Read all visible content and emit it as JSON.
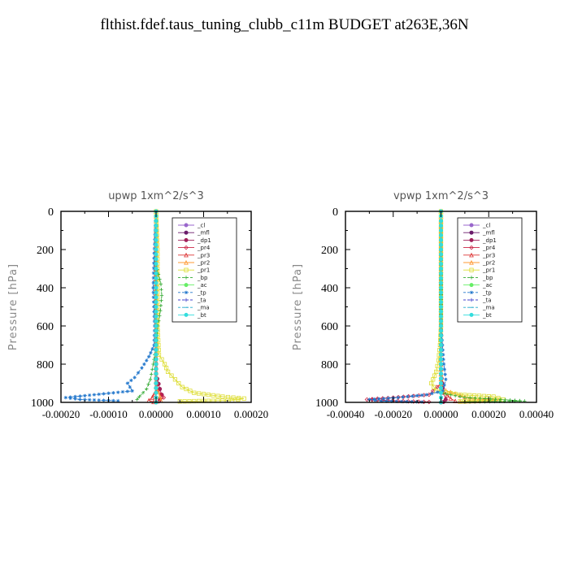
{
  "title": "flthist.fdef.taus_tuning_clubb_c11m  BUDGET at263E,36N",
  "chart_data": [
    {
      "type": "line",
      "title": "upwp   1xm^2/s^3",
      "ylabel": "Pressure [hPa]",
      "xlim": [
        -0.0002,
        0.0002
      ],
      "ylim": [
        1000,
        0
      ],
      "xticks": [
        "-0.00020",
        "-0.00010",
        "0.00000",
        "0.00010",
        "0.00020"
      ],
      "xtick_values": [
        -0.0002,
        -0.0001,
        0,
        0.0001,
        0.0002
      ],
      "yticks": [
        "0",
        "200",
        "400",
        "600",
        "800",
        "1000"
      ],
      "ytick_values": [
        0,
        200,
        400,
        600,
        800,
        1000
      ],
      "legend_position": "top-right",
      "series": [
        {
          "name": "_cl",
          "color": "#9966cc",
          "marker": "circle",
          "points": [
            [
              0,
              0
            ],
            [
              0,
              500
            ],
            [
              0,
              1000
            ]
          ]
        },
        {
          "name": "_mfl",
          "color": "#6a1b6a",
          "marker": "circle",
          "points": [
            [
              0,
              0
            ],
            [
              0,
              500
            ],
            [
              0,
              1000
            ]
          ]
        },
        {
          "name": "_dp1",
          "color": "#a0205a",
          "marker": "circle",
          "points": [
            [
              0,
              0
            ],
            [
              0,
              700
            ],
            [
              0,
              850
            ],
            [
              8e-06,
              930
            ],
            [
              1.2e-05,
              960
            ],
            [
              8e-06,
              985
            ],
            [
              0,
              1000
            ]
          ]
        },
        {
          "name": "_pr4",
          "color": "#cc2244",
          "marker": "diamond",
          "points": [
            [
              0,
              0
            ],
            [
              0,
              880
            ],
            [
              4e-06,
              940
            ],
            [
              1.6e-05,
              975
            ],
            [
              6e-06,
              995
            ]
          ]
        },
        {
          "name": "_pr3",
          "color": "#dd3333",
          "marker": "triangle",
          "points": [
            [
              0,
              0
            ],
            [
              0,
              940
            ],
            [
              -8e-06,
              975
            ],
            [
              -1.5e-05,
              990
            ],
            [
              -5e-06,
              998
            ]
          ]
        },
        {
          "name": "_pr2",
          "color": "#ff9933",
          "marker": "triangle",
          "points": [
            [
              0,
              0
            ],
            [
              0,
              920
            ],
            [
              8e-06,
              970
            ],
            [
              1e-05,
              990
            ]
          ]
        },
        {
          "name": "_pr1",
          "color": "#dddd33",
          "marker": "square",
          "points": [
            [
              0,
              0
            ],
            [
              3e-06,
              200
            ],
            [
              3e-06,
              400
            ],
            [
              3e-06,
              600
            ],
            [
              6e-06,
              750
            ],
            [
              1.8e-05,
              800
            ],
            [
              2.5e-05,
              840
            ],
            [
              4e-05,
              880
            ],
            [
              5.5e-05,
              920
            ],
            [
              8e-05,
              950
            ],
            [
              0.00014,
              970
            ],
            [
              0.000185,
              980
            ],
            [
              0.00016,
              990
            ],
            [
              5e-05,
              995
            ]
          ]
        },
        {
          "name": "_bp",
          "color": "#33aa33",
          "marker": "plus",
          "points": [
            [
              0,
              0
            ],
            [
              0,
              280
            ],
            [
              5e-06,
              330
            ],
            [
              1e-05,
              380
            ],
            [
              1.2e-05,
              440
            ],
            [
              9e-06,
              520
            ],
            [
              4e-06,
              600
            ],
            [
              0,
              700
            ],
            [
              -6e-06,
              800
            ],
            [
              -1.2e-05,
              880
            ],
            [
              -2e-05,
              930
            ],
            [
              -3.5e-05,
              970
            ],
            [
              -4e-05,
              985
            ]
          ]
        },
        {
          "name": "_ac",
          "color": "#66ee66",
          "marker": "circle",
          "points": [
            [
              0,
              0
            ],
            [
              0,
              500
            ],
            [
              0,
              1000
            ]
          ]
        },
        {
          "name": "_tp",
          "color": "#2277cc",
          "marker": "star",
          "points": [
            [
              0,
              0
            ],
            [
              -4e-06,
              220
            ],
            [
              -6e-06,
              400
            ],
            [
              -3e-06,
              600
            ],
            [
              -4e-06,
              700
            ],
            [
              -1.5e-05,
              760
            ],
            [
              -3e-05,
              820
            ],
            [
              -4.5e-05,
              870
            ],
            [
              -6e-05,
              900
            ],
            [
              -5e-05,
              940
            ],
            [
              -0.00013,
              960
            ],
            [
              -0.00019,
              975
            ],
            [
              -0.00016,
              985
            ],
            [
              -8e-05,
              992
            ]
          ]
        },
        {
          "name": "_ta",
          "color": "#4444cc",
          "marker": "plus",
          "points": [
            [
              0,
              0
            ],
            [
              0,
              500
            ],
            [
              0,
              1000
            ]
          ]
        },
        {
          "name": "_ma",
          "color": "#22aacc",
          "marker": "dash",
          "points": [
            [
              0,
              0
            ],
            [
              0,
              500
            ],
            [
              0,
              1000
            ]
          ]
        },
        {
          "name": "_bt",
          "color": "#33dddd",
          "marker": "circle",
          "points": [
            [
              0,
              0
            ],
            [
              0,
              500
            ],
            [
              0,
              1000
            ]
          ]
        }
      ]
    },
    {
      "type": "line",
      "title": "vpwp   1xm^2/s^3",
      "ylabel": "Pressure [hPa]",
      "xlim": [
        -0.0004,
        0.0004
      ],
      "ylim": [
        1000,
        0
      ],
      "xticks": [
        "-0.00040",
        "-0.00020",
        "0.00000",
        "0.00020",
        "0.00040"
      ],
      "xtick_values": [
        -0.0004,
        -0.0002,
        0,
        0.0002,
        0.0004
      ],
      "yticks": [
        "0",
        "200",
        "400",
        "600",
        "800",
        "1000"
      ],
      "ytick_values": [
        0,
        200,
        400,
        600,
        800,
        1000
      ],
      "legend_position": "top-right",
      "series": [
        {
          "name": "_cl",
          "color": "#9966cc",
          "marker": "circle",
          "points": [
            [
              0,
              0
            ],
            [
              0,
              500
            ],
            [
              0,
              1000
            ]
          ]
        },
        {
          "name": "_mfl",
          "color": "#6a1b6a",
          "marker": "circle",
          "points": [
            [
              0,
              0
            ],
            [
              0,
              500
            ],
            [
              0,
              1000
            ]
          ]
        },
        {
          "name": "_dp1",
          "color": "#a0205a",
          "marker": "circle",
          "points": [
            [
              0,
              0
            ],
            [
              0,
              600
            ],
            [
              0,
              850
            ],
            [
              1e-05,
              950
            ],
            [
              2e-05,
              985
            ],
            [
              1e-05,
              998
            ]
          ]
        },
        {
          "name": "_pr4",
          "color": "#cc2244",
          "marker": "diamond",
          "points": [
            [
              0,
              0
            ],
            [
              0,
              900
            ],
            [
              -5e-05,
              960
            ],
            [
              -0.0002,
              975
            ],
            [
              -0.00031,
              985
            ],
            [
              -0.00018,
              993
            ],
            [
              -5e-05,
              998
            ]
          ]
        },
        {
          "name": "_pr3",
          "color": "#dd3333",
          "marker": "triangle",
          "points": [
            [
              0,
              0
            ],
            [
              0,
              930
            ],
            [
              4e-05,
              980
            ],
            [
              6e-05,
              993
            ]
          ]
        },
        {
          "name": "_pr2",
          "color": "#ff9933",
          "marker": "triangle",
          "points": [
            [
              0,
              0
            ],
            [
              0,
              930
            ],
            [
              0.00012,
              980
            ],
            [
              0.00024,
              990
            ],
            [
              8e-05,
              996
            ]
          ]
        },
        {
          "name": "_pr1",
          "color": "#dddd33",
          "marker": "square",
          "points": [
            [
              0,
              0
            ],
            [
              0,
              600
            ],
            [
              -4e-06,
              700
            ],
            [
              -1e-05,
              780
            ],
            [
              -2e-05,
              840
            ],
            [
              -4e-05,
              900
            ],
            [
              -2e-05,
              940
            ],
            [
              8e-05,
              960
            ],
            [
              0.00022,
              970
            ],
            [
              0.00026,
              985
            ],
            [
              8e-05,
              995
            ]
          ]
        },
        {
          "name": "_bp",
          "color": "#33aa33",
          "marker": "plus",
          "points": [
            [
              0,
              0
            ],
            [
              0,
              950
            ],
            [
              0.0001,
              975
            ],
            [
              0.00025,
              985
            ],
            [
              0.00035,
              993
            ],
            [
              0.0001,
              998
            ]
          ]
        },
        {
          "name": "_ac",
          "color": "#66ee66",
          "marker": "circle",
          "points": [
            [
              0,
              0
            ],
            [
              0,
              500
            ],
            [
              0,
              1000
            ]
          ]
        },
        {
          "name": "_tp",
          "color": "#2277cc",
          "marker": "star",
          "points": [
            [
              0,
              0
            ],
            [
              0,
              600
            ],
            [
              6e-06,
              700
            ],
            [
              1.2e-05,
              800
            ],
            [
              2e-05,
              880
            ],
            [
              8e-06,
              940
            ],
            [
              -6e-05,
              960
            ],
            [
              -0.00018,
              975
            ],
            [
              -0.0003,
              985
            ],
            [
              -0.00025,
              993
            ],
            [
              -8e-05,
              998
            ]
          ]
        },
        {
          "name": "_ta",
          "color": "#4444cc",
          "marker": "plus",
          "points": [
            [
              0,
              0
            ],
            [
              0,
              500
            ],
            [
              0,
              1000
            ]
          ]
        },
        {
          "name": "_ma",
          "color": "#22aacc",
          "marker": "dash",
          "points": [
            [
              0,
              0
            ],
            [
              0,
              500
            ],
            [
              0,
              1000
            ]
          ]
        },
        {
          "name": "_bt",
          "color": "#33dddd",
          "marker": "circle",
          "points": [
            [
              0,
              0
            ],
            [
              0,
              500
            ],
            [
              0,
              1000
            ]
          ]
        }
      ]
    }
  ]
}
